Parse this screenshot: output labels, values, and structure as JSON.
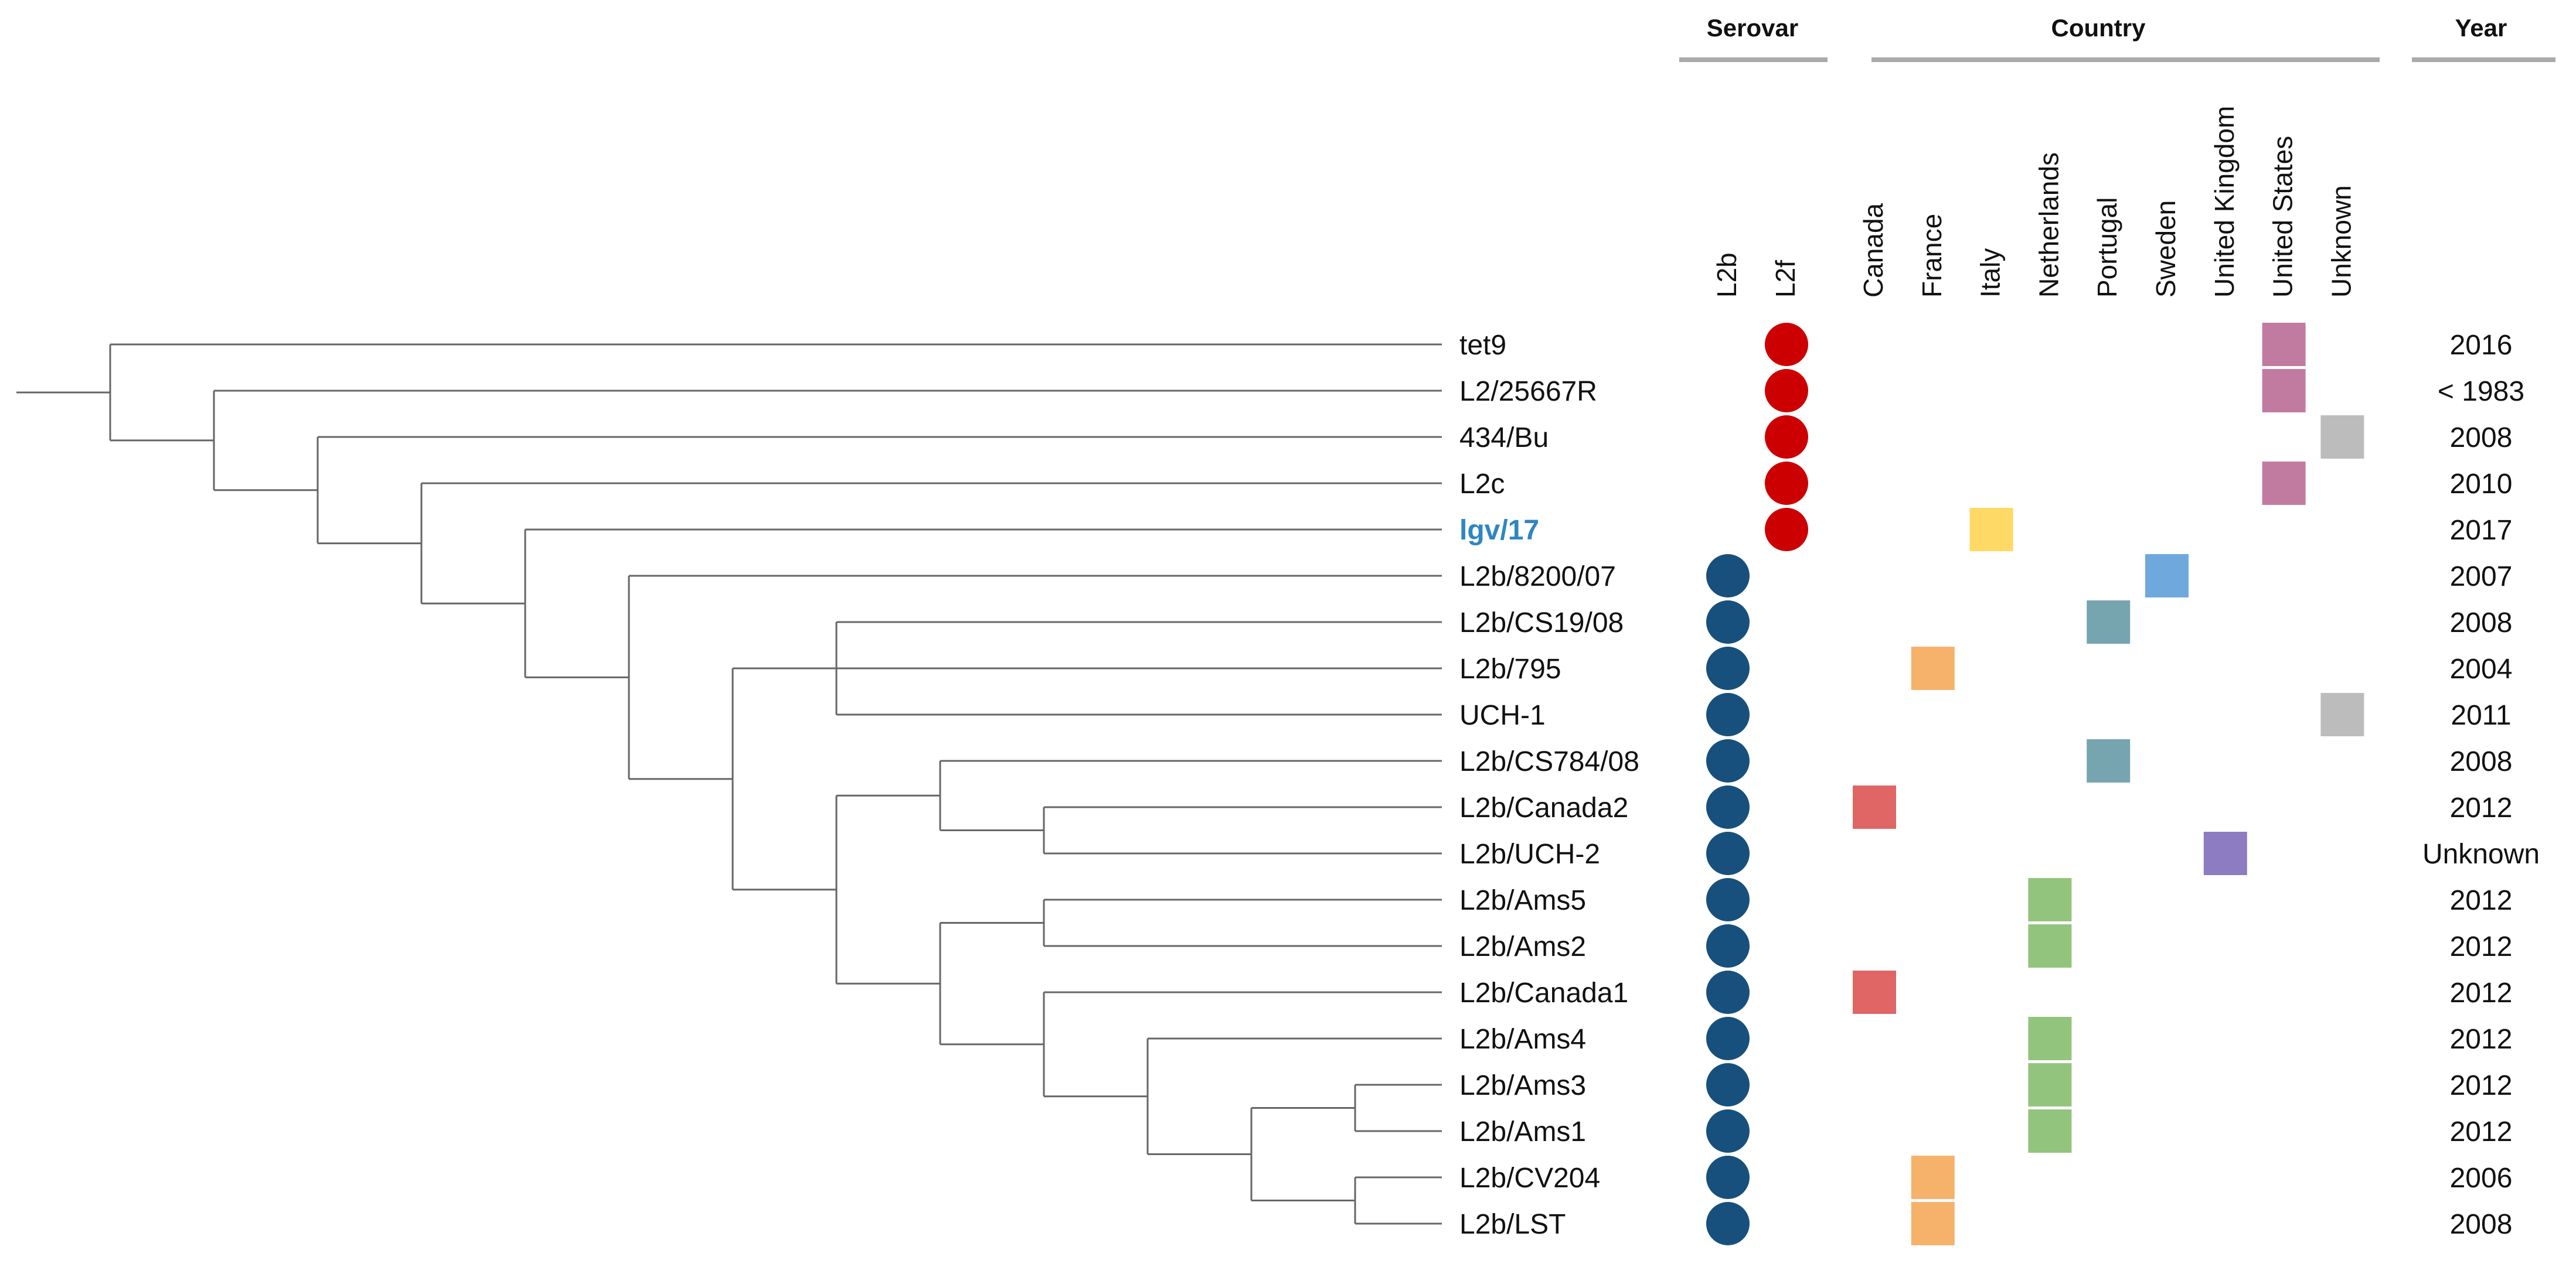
{
  "headers": {
    "serovar": "Serovar",
    "country": "Country",
    "year": "Year"
  },
  "serovar_columns": [
    "L2b",
    "L2f"
  ],
  "country_columns": [
    "Canada",
    "France",
    "Italy",
    "Netherlands",
    "Portugal",
    "Sweden",
    "United Kingdom",
    "United States",
    "Unknown"
  ],
  "colors": {
    "L2b": "#17507c",
    "L2f": "#cc0000",
    "highlight_label": "#2e86c1",
    "Canada": "#e06666",
    "France": "#f6b26b",
    "Italy": "#ffd966",
    "Netherlands": "#93c47d",
    "Portugal": "#76a5af",
    "Sweden": "#6fa8dc",
    "United Kingdom": "#8e7cc3",
    "United States": "#c27ba0",
    "Unknown": "#bcbcbc",
    "branch": "#666666",
    "header_rule": "#aaaaaa"
  },
  "tree": {
    "name": "root",
    "children": [
      {
        "name": "tet9"
      },
      {
        "name": "n2",
        "children": [
          {
            "name": "L2/25667R"
          },
          {
            "name": "n3",
            "children": [
              {
                "name": "434/Bu"
              },
              {
                "name": "n4",
                "children": [
                  {
                    "name": "L2c"
                  },
                  {
                    "name": "n5",
                    "children": [
                      {
                        "name": "lgv/17"
                      },
                      {
                        "name": "n6",
                        "children": [
                          {
                            "name": "L2b/8200/07"
                          },
                          {
                            "name": "n7",
                            "children": [
                              {
                                "name": "n8",
                                "children": [
                                  {
                                    "name": "L2b/CS19/08"
                                  },
                                  {
                                    "name": "L2b/795"
                                  },
                                  {
                                    "name": "UCH-1"
                                  }
                                ]
                              },
                              {
                                "name": "n9",
                                "children": [
                                  {
                                    "name": "n10",
                                    "children": [
                                      {
                                        "name": "L2b/CS784/08"
                                      },
                                      {
                                        "name": "n11",
                                        "children": [
                                          {
                                            "name": "L2b/Canada2"
                                          },
                                          {
                                            "name": "L2b/UCH-2"
                                          }
                                        ]
                                      }
                                    ]
                                  },
                                  {
                                    "name": "n12",
                                    "children": [
                                      {
                                        "name": "n13",
                                        "children": [
                                          {
                                            "name": "L2b/Ams5"
                                          },
                                          {
                                            "name": "L2b/Ams2"
                                          }
                                        ]
                                      },
                                      {
                                        "name": "n14",
                                        "children": [
                                          {
                                            "name": "L2b/Canada1"
                                          },
                                          {
                                            "name": "n15",
                                            "children": [
                                              {
                                                "name": "L2b/Ams4"
                                              },
                                              {
                                                "name": "n16",
                                                "children": [
                                                  {
                                                    "name": "n17",
                                                    "children": [
                                                      {
                                                        "name": "L2b/Ams3"
                                                      },
                                                      {
                                                        "name": "L2b/Ams1"
                                                      }
                                                    ]
                                                  },
                                                  {
                                                    "name": "n18",
                                                    "children": [
                                                      {
                                                        "name": "L2b/CV204"
                                                      },
                                                      {
                                                        "name": "L2b/LST"
                                                      }
                                                    ]
                                                  }
                                                ]
                                              }
                                            ]
                                          }
                                        ]
                                      }
                                    ]
                                  }
                                ]
                              }
                            ]
                          }
                        ]
                      }
                    ]
                  }
                ]
              }
            ]
          }
        ]
      }
    ]
  },
  "strains": [
    {
      "name": "tet9",
      "serovar": "L2f",
      "country": "United States",
      "year": "2016",
      "highlight": false
    },
    {
      "name": "L2/25667R",
      "serovar": "L2f",
      "country": "United States",
      "year": "< 1983",
      "highlight": false
    },
    {
      "name": "434/Bu",
      "serovar": "L2f",
      "country": "Unknown",
      "year": "2008",
      "highlight": false
    },
    {
      "name": "L2c",
      "serovar": "L2f",
      "country": "United States",
      "year": "2010",
      "highlight": false
    },
    {
      "name": "lgv/17",
      "serovar": "L2f",
      "country": "Italy",
      "year": "2017",
      "highlight": true
    },
    {
      "name": "L2b/8200/07",
      "serovar": "L2b",
      "country": "Sweden",
      "year": "2007",
      "highlight": false
    },
    {
      "name": "L2b/CS19/08",
      "serovar": "L2b",
      "country": "Portugal",
      "year": "2008",
      "highlight": false
    },
    {
      "name": "L2b/795",
      "serovar": "L2b",
      "country": "France",
      "year": "2004",
      "highlight": false
    },
    {
      "name": "UCH-1",
      "serovar": "L2b",
      "country": "Unknown",
      "year": "2011",
      "highlight": false
    },
    {
      "name": "L2b/CS784/08",
      "serovar": "L2b",
      "country": "Portugal",
      "year": "2008",
      "highlight": false
    },
    {
      "name": "L2b/Canada2",
      "serovar": "L2b",
      "country": "Canada",
      "year": "2012",
      "highlight": false
    },
    {
      "name": "L2b/UCH-2",
      "serovar": "L2b",
      "country": "United Kingdom",
      "year": "Unknown",
      "highlight": false
    },
    {
      "name": "L2b/Ams5",
      "serovar": "L2b",
      "country": "Netherlands",
      "year": "2012",
      "highlight": false
    },
    {
      "name": "L2b/Ams2",
      "serovar": "L2b",
      "country": "Netherlands",
      "year": "2012",
      "highlight": false
    },
    {
      "name": "L2b/Canada1",
      "serovar": "L2b",
      "country": "Canada",
      "year": "2012",
      "highlight": false
    },
    {
      "name": "L2b/Ams4",
      "serovar": "L2b",
      "country": "Netherlands",
      "year": "2012",
      "highlight": false
    },
    {
      "name": "L2b/Ams3",
      "serovar": "L2b",
      "country": "Netherlands",
      "year": "2012",
      "highlight": false
    },
    {
      "name": "L2b/Ams1",
      "serovar": "L2b",
      "country": "Netherlands",
      "year": "2012",
      "highlight": false
    },
    {
      "name": "L2b/CV204",
      "serovar": "L2b",
      "country": "France",
      "year": "2006",
      "highlight": false
    },
    {
      "name": "L2b/LST",
      "serovar": "L2b",
      "country": "France",
      "year": "2008",
      "highlight": false
    }
  ]
}
